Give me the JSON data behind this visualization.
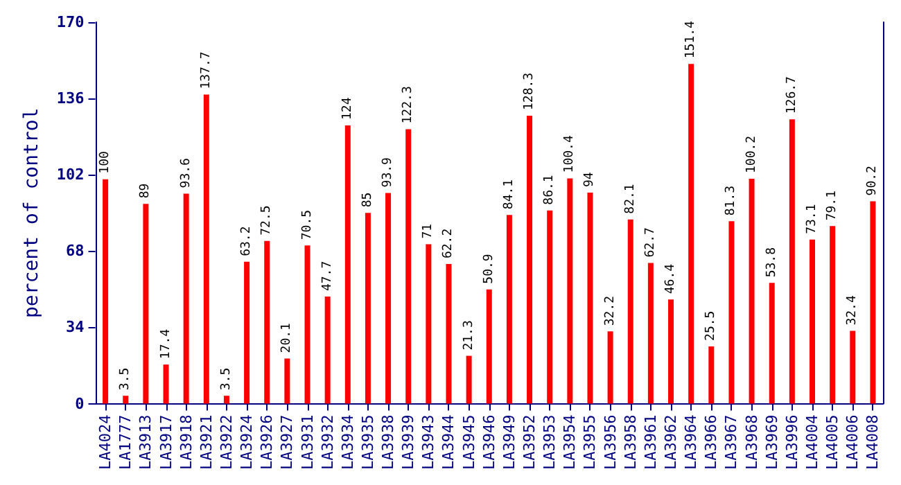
{
  "chart_data": {
    "type": "bar",
    "ylabel": "percent of control",
    "categories": [
      "LA4024",
      "LA1777",
      "LA3913",
      "LA3917",
      "LA3918",
      "LA3921",
      "LA3922",
      "LA3924",
      "LA3926",
      "LA3927",
      "LA3931",
      "LA3932",
      "LA3934",
      "LA3935",
      "LA3938",
      "LA3939",
      "LA3943",
      "LA3944",
      "LA3945",
      "LA3946",
      "LA3949",
      "LA3952",
      "LA3953",
      "LA3954",
      "LA3955",
      "LA3956",
      "LA3958",
      "LA3961",
      "LA3962",
      "LA3964",
      "LA3966",
      "LA3967",
      "LA3968",
      "LA3969",
      "LA3996",
      "LA4004",
      "LA4005",
      "LA4006",
      "LA4008"
    ],
    "values": [
      100,
      3.5,
      89,
      17.4,
      93.6,
      137.7,
      3.5,
      63.2,
      72.5,
      20.1,
      70.5,
      47.7,
      124,
      85,
      93.9,
      122.3,
      71,
      62.2,
      21.3,
      50.9,
      84.1,
      128.3,
      86.1,
      100.4,
      94,
      32.2,
      82.1,
      62.7,
      46.4,
      151.4,
      25.5,
      81.3,
      100.2,
      53.8,
      126.7,
      73.1,
      79.1,
      32.4,
      90.2
    ],
    "color": "#ff0000",
    "data_labels": true,
    "ylim": [
      0,
      170
    ],
    "yticks": [
      0,
      34,
      68,
      102,
      136,
      170
    ],
    "grid": false
  }
}
